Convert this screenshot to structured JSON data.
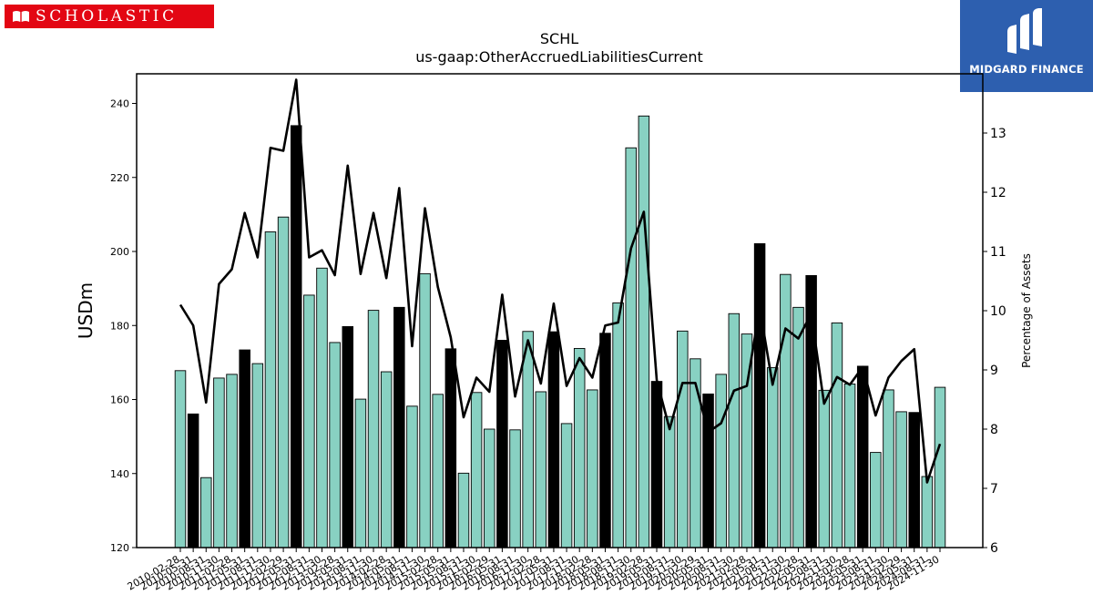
{
  "header": {
    "left_logo_text": "SCHOLASTIC",
    "right_logo_text": "MIDGARD FINANCE"
  },
  "chart_data": {
    "type": "bar",
    "title": "SCHL",
    "subtitle": "us-gaap:OtherAccruedLiabilitiesCurrent",
    "ylabel": "USDm",
    "y2label": "Percentage of Assets",
    "ylim": [
      120,
      248
    ],
    "y2lim": [
      6,
      14
    ],
    "yticks": [
      120,
      140,
      160,
      180,
      200,
      220,
      240
    ],
    "y2ticks": [
      6,
      7,
      8,
      9,
      10,
      11,
      12,
      13
    ],
    "colors": {
      "bar": "#88d1c2",
      "bar_highlight": "#000000",
      "line": "#000000"
    },
    "highlight_rule": "fiscal year-end (May 31) bars shown in black",
    "categories": [
      "2010-02-28",
      "2010-05-31",
      "2010-08-31",
      "2010-11-30",
      "2011-02-28",
      "2011-05-31",
      "2011-08-31",
      "2011-11-30",
      "2012-02-29",
      "2012-05-31",
      "2012-08-31",
      "2012-11-30",
      "2013-02-28",
      "2013-05-31",
      "2013-08-31",
      "2013-11-30",
      "2014-02-28",
      "2014-05-31",
      "2014-08-31",
      "2014-11-30",
      "2015-02-28",
      "2015-05-31",
      "2015-08-31",
      "2015-11-30",
      "2016-02-29",
      "2016-05-31",
      "2016-08-31",
      "2016-11-30",
      "2017-02-28",
      "2017-05-31",
      "2017-08-31",
      "2017-11-30",
      "2018-02-28",
      "2018-05-31",
      "2018-08-31",
      "2018-11-30",
      "2019-02-28",
      "2019-05-31",
      "2019-08-31",
      "2019-11-30",
      "2020-02-29",
      "2020-05-31",
      "2020-08-31",
      "2020-11-30",
      "2021-02-28",
      "2021-05-31",
      "2021-08-31",
      "2021-11-30",
      "2022-02-28",
      "2022-05-31",
      "2022-08-31",
      "2022-11-30",
      "2023-02-28",
      "2023-05-31",
      "2023-08-31",
      "2023-11-30",
      "2024-02-29",
      "2024-05-31",
      "2024-08-31",
      "2024-11-30"
    ],
    "x_tick_labels": [
      "2010-02-28",
      "2010-05-31",
      "2010-08-31",
      "2010-11-30",
      "2011-02-28",
      "2011-05-31",
      "2011-08-31",
      "2011-11-30",
      "2012-02-29",
      "2012-05-31",
      "2012-08-31",
      "2012-11-30",
      "2013-02-28",
      "2013-05-31",
      "2013-08-31",
      "2013-11-30",
      "2014-02-28",
      "2014-05-31",
      "2014-08-31",
      "2014-11-30",
      "2015-02-28",
      "2015-05-31",
      "2015-08-31",
      "2015-11-30",
      "2016-02-29",
      "2016-05-31",
      "2016-08-31",
      "2016-11-30",
      "2017-02-28",
      "2017-05-31",
      "2017-08-31",
      "2017-11-30",
      "2018-02-28",
      "2018-05-31",
      "2018-08-31",
      "2018-11-30",
      "2019-02-28",
      "2019-05-31",
      "2019-08-31",
      "2019-11-30",
      "2020-02-29",
      "2020-05-31",
      "2020-08-31",
      "2020-11-30",
      "2021-02-28",
      "2021-05-31",
      "2021-08-31",
      "2021-11-30",
      "2022-02-28",
      "2022-05-31",
      "2022-08-31",
      "2022-11-30",
      "2023-02-28",
      "2023-05-31",
      "2023-08-31",
      "2023-11-30",
      "2024-02-29",
      "2024-05-31",
      "2024-08-31",
      "2024-11-30"
    ],
    "series": [
      {
        "axis": "left",
        "kind": "bar",
        "values": [
          167.8,
          156.1,
          138.9,
          165.8,
          166.8,
          173.4,
          169.7,
          205.3,
          209.3,
          234.0,
          188.2,
          195.5,
          175.4,
          179.7,
          160.1,
          184.1,
          167.5,
          184.9,
          158.2,
          194.0,
          161.4,
          173.7,
          140.1,
          161.9,
          152.0,
          176.0,
          151.8,
          178.4,
          162.1,
          178.3,
          153.5,
          173.8,
          162.6,
          177.9,
          186.1,
          228.0,
          236.6,
          164.9,
          155.4,
          178.5,
          171.0,
          161.5,
          166.8,
          183.2,
          177.7,
          202.1,
          168.6,
          193.8,
          184.9,
          193.5,
          162.5,
          180.7,
          164.2,
          169.0,
          145.7,
          162.6,
          156.7,
          156.5,
          139.2,
          163.3
        ]
      },
      {
        "axis": "right",
        "kind": "line",
        "values": [
          10.1,
          9.75,
          8.45,
          10.45,
          10.7,
          11.65,
          10.9,
          12.75,
          12.7,
          13.9,
          10.9,
          11.02,
          10.6,
          12.45,
          10.62,
          11.65,
          10.55,
          12.07,
          9.4,
          11.73,
          10.4,
          9.55,
          8.2,
          8.87,
          8.63,
          10.27,
          8.55,
          9.5,
          8.77,
          10.12,
          8.73,
          9.2,
          8.87,
          9.75,
          9.8,
          11.05,
          11.67,
          8.83,
          8.0,
          8.78,
          8.78,
          7.95,
          8.1,
          8.65,
          8.73,
          10.05,
          8.75,
          9.7,
          9.53,
          9.95,
          8.43,
          8.88,
          8.75,
          9.05,
          8.23,
          8.87,
          9.15,
          9.35,
          7.1,
          7.75
        ]
      }
    ]
  }
}
